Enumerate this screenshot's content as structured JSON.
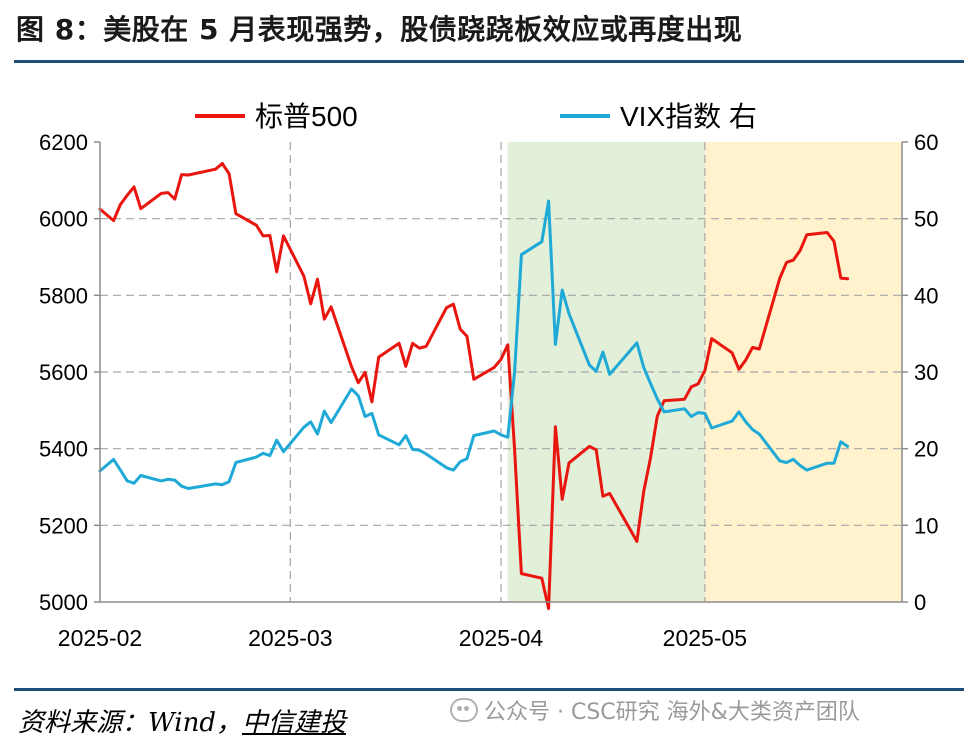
{
  "figure": {
    "title": "图 8：美股在 5 月表现强势，股债跷跷板效应或再度出现",
    "source_label": "资料来源：Wind，",
    "source_org": "中信建投",
    "watermark": "公众号 · CSC研究 海外&大类资产团队"
  },
  "chart_data": {
    "type": "line",
    "x_tick_labels": [
      "2025-02",
      "2025-03",
      "2025-04",
      "2025-05"
    ],
    "y_left_ticks": [
      "5000",
      "5200",
      "5400",
      "5600",
      "5800",
      "6000",
      "6200"
    ],
    "y_right_ticks": [
      "0",
      "10",
      "20",
      "30",
      "40",
      "50",
      "60"
    ],
    "y_left_range": [
      5000,
      6200
    ],
    "y_right_range": [
      0,
      60
    ],
    "x_range": [
      "2025-02-01",
      "2025-05-30"
    ],
    "grid": "vertical dashed at month starts, horizontal dashed",
    "legend_position": "top",
    "shaded_ranges": [
      {
        "start": "2025-04-02",
        "end": "2025-05-01",
        "color": "#e2efd9"
      },
      {
        "start": "2025-05-01",
        "end": "2025-05-30",
        "color": "#fff2cc"
      }
    ],
    "series": [
      {
        "name": "标普500",
        "axis": "left",
        "color": "#e8160f",
        "points": [
          [
            "2025-02-01",
            6025
          ],
          [
            "2025-02-03",
            5995
          ],
          [
            "2025-02-04",
            6037
          ],
          [
            "2025-02-05",
            6061
          ],
          [
            "2025-02-06",
            6083
          ],
          [
            "2025-02-07",
            6026
          ],
          [
            "2025-02-10",
            6066
          ],
          [
            "2025-02-11",
            6068
          ],
          [
            "2025-02-12",
            6051
          ],
          [
            "2025-02-13",
            6115
          ],
          [
            "2025-02-14",
            6114
          ],
          [
            "2025-02-18",
            6129
          ],
          [
            "2025-02-19",
            6144
          ],
          [
            "2025-02-20",
            6117
          ],
          [
            "2025-02-21",
            6013
          ],
          [
            "2025-02-24",
            5983
          ],
          [
            "2025-02-25",
            5955
          ],
          [
            "2025-02-26",
            5956
          ],
          [
            "2025-02-27",
            5861
          ],
          [
            "2025-02-28",
            5955
          ],
          [
            "2025-03-03",
            5850
          ],
          [
            "2025-03-04",
            5778
          ],
          [
            "2025-03-05",
            5842
          ],
          [
            "2025-03-06",
            5738
          ],
          [
            "2025-03-07",
            5770
          ],
          [
            "2025-03-10",
            5614
          ],
          [
            "2025-03-11",
            5572
          ],
          [
            "2025-03-12",
            5599
          ],
          [
            "2025-03-13",
            5522
          ],
          [
            "2025-03-14",
            5639
          ],
          [
            "2025-03-17",
            5675
          ],
          [
            "2025-03-18",
            5615
          ],
          [
            "2025-03-19",
            5675
          ],
          [
            "2025-03-20",
            5662
          ],
          [
            "2025-03-21",
            5667
          ],
          [
            "2025-03-24",
            5768
          ],
          [
            "2025-03-25",
            5777
          ],
          [
            "2025-03-26",
            5712
          ],
          [
            "2025-03-27",
            5693
          ],
          [
            "2025-03-28",
            5581
          ],
          [
            "2025-03-31",
            5612
          ],
          [
            "2025-04-01",
            5633
          ],
          [
            "2025-04-02",
            5671
          ],
          [
            "2025-04-03",
            5397
          ],
          [
            "2025-04-04",
            5074
          ],
          [
            "2025-04-07",
            5062
          ],
          [
            "2025-04-08",
            4983
          ],
          [
            "2025-04-09",
            5457
          ],
          [
            "2025-04-10",
            5268
          ],
          [
            "2025-04-11",
            5363
          ],
          [
            "2025-04-14",
            5406
          ],
          [
            "2025-04-15",
            5397
          ],
          [
            "2025-04-16",
            5276
          ],
          [
            "2025-04-17",
            5283
          ],
          [
            "2025-04-21",
            5158
          ],
          [
            "2025-04-22",
            5288
          ],
          [
            "2025-04-23",
            5376
          ],
          [
            "2025-04-24",
            5485
          ],
          [
            "2025-04-25",
            5525
          ],
          [
            "2025-04-28",
            5529
          ],
          [
            "2025-04-29",
            5561
          ],
          [
            "2025-04-30",
            5569
          ],
          [
            "2025-05-01",
            5604
          ],
          [
            "2025-05-02",
            5687
          ],
          [
            "2025-05-05",
            5650
          ],
          [
            "2025-05-06",
            5607
          ],
          [
            "2025-05-07",
            5631
          ],
          [
            "2025-05-08",
            5664
          ],
          [
            "2025-05-09",
            5660
          ],
          [
            "2025-05-12",
            5844
          ],
          [
            "2025-05-13",
            5886
          ],
          [
            "2025-05-14",
            5892
          ],
          [
            "2025-05-15",
            5917
          ],
          [
            "2025-05-16",
            5958
          ],
          [
            "2025-05-19",
            5964
          ],
          [
            "2025-05-20",
            5941
          ],
          [
            "2025-05-21",
            5845
          ],
          [
            "2025-05-22",
            5843
          ]
        ]
      },
      {
        "name": "VIX指数 右",
        "axis": "right",
        "color": "#1fa9d6",
        "points": [
          [
            "2025-02-01",
            17.1
          ],
          [
            "2025-02-03",
            18.6
          ],
          [
            "2025-02-04",
            17.2
          ],
          [
            "2025-02-05",
            15.8
          ],
          [
            "2025-02-06",
            15.5
          ],
          [
            "2025-02-07",
            16.5
          ],
          [
            "2025-02-10",
            15.8
          ],
          [
            "2025-02-11",
            16.0
          ],
          [
            "2025-02-12",
            15.9
          ],
          [
            "2025-02-13",
            15.1
          ],
          [
            "2025-02-14",
            14.8
          ],
          [
            "2025-02-18",
            15.4
          ],
          [
            "2025-02-19",
            15.3
          ],
          [
            "2025-02-20",
            15.7
          ],
          [
            "2025-02-21",
            18.2
          ],
          [
            "2025-02-24",
            18.9
          ],
          [
            "2025-02-25",
            19.4
          ],
          [
            "2025-02-26",
            19.1
          ],
          [
            "2025-02-27",
            21.1
          ],
          [
            "2025-02-28",
            19.6
          ],
          [
            "2025-03-03",
            22.8
          ],
          [
            "2025-03-04",
            23.5
          ],
          [
            "2025-03-05",
            21.9
          ],
          [
            "2025-03-06",
            24.9
          ],
          [
            "2025-03-07",
            23.4
          ],
          [
            "2025-03-10",
            27.8
          ],
          [
            "2025-03-11",
            26.9
          ],
          [
            "2025-03-12",
            24.2
          ],
          [
            "2025-03-13",
            24.6
          ],
          [
            "2025-03-14",
            21.8
          ],
          [
            "2025-03-17",
            20.5
          ],
          [
            "2025-03-18",
            21.7
          ],
          [
            "2025-03-19",
            19.9
          ],
          [
            "2025-03-20",
            19.8
          ],
          [
            "2025-03-21",
            19.3
          ],
          [
            "2025-03-24",
            17.5
          ],
          [
            "2025-03-25",
            17.2
          ],
          [
            "2025-03-26",
            18.3
          ],
          [
            "2025-03-27",
            18.7
          ],
          [
            "2025-03-28",
            21.7
          ],
          [
            "2025-03-31",
            22.3
          ],
          [
            "2025-04-01",
            21.8
          ],
          [
            "2025-04-02",
            21.5
          ],
          [
            "2025-04-03",
            30.0
          ],
          [
            "2025-04-04",
            45.3
          ],
          [
            "2025-04-07",
            47.0
          ],
          [
            "2025-04-08",
            52.3
          ],
          [
            "2025-04-09",
            33.6
          ],
          [
            "2025-04-10",
            40.7
          ],
          [
            "2025-04-11",
            37.6
          ],
          [
            "2025-04-14",
            30.9
          ],
          [
            "2025-04-15",
            30.1
          ],
          [
            "2025-04-16",
            32.6
          ],
          [
            "2025-04-17",
            29.7
          ],
          [
            "2025-04-21",
            33.8
          ],
          [
            "2025-04-22",
            30.6
          ],
          [
            "2025-04-23",
            28.5
          ],
          [
            "2025-04-24",
            26.5
          ],
          [
            "2025-04-25",
            24.8
          ],
          [
            "2025-04-28",
            25.2
          ],
          [
            "2025-04-29",
            24.2
          ],
          [
            "2025-04-30",
            24.7
          ],
          [
            "2025-05-01",
            24.6
          ],
          [
            "2025-05-02",
            22.7
          ],
          [
            "2025-05-05",
            23.6
          ],
          [
            "2025-05-06",
            24.8
          ],
          [
            "2025-05-07",
            23.5
          ],
          [
            "2025-05-08",
            22.5
          ],
          [
            "2025-05-09",
            21.9
          ],
          [
            "2025-05-12",
            18.4
          ],
          [
            "2025-05-13",
            18.2
          ],
          [
            "2025-05-14",
            18.6
          ],
          [
            "2025-05-15",
            17.8
          ],
          [
            "2025-05-16",
            17.2
          ],
          [
            "2025-05-19",
            18.1
          ],
          [
            "2025-05-20",
            18.1
          ],
          [
            "2025-05-21",
            20.9
          ],
          [
            "2025-05-22",
            20.3
          ]
        ]
      }
    ]
  }
}
